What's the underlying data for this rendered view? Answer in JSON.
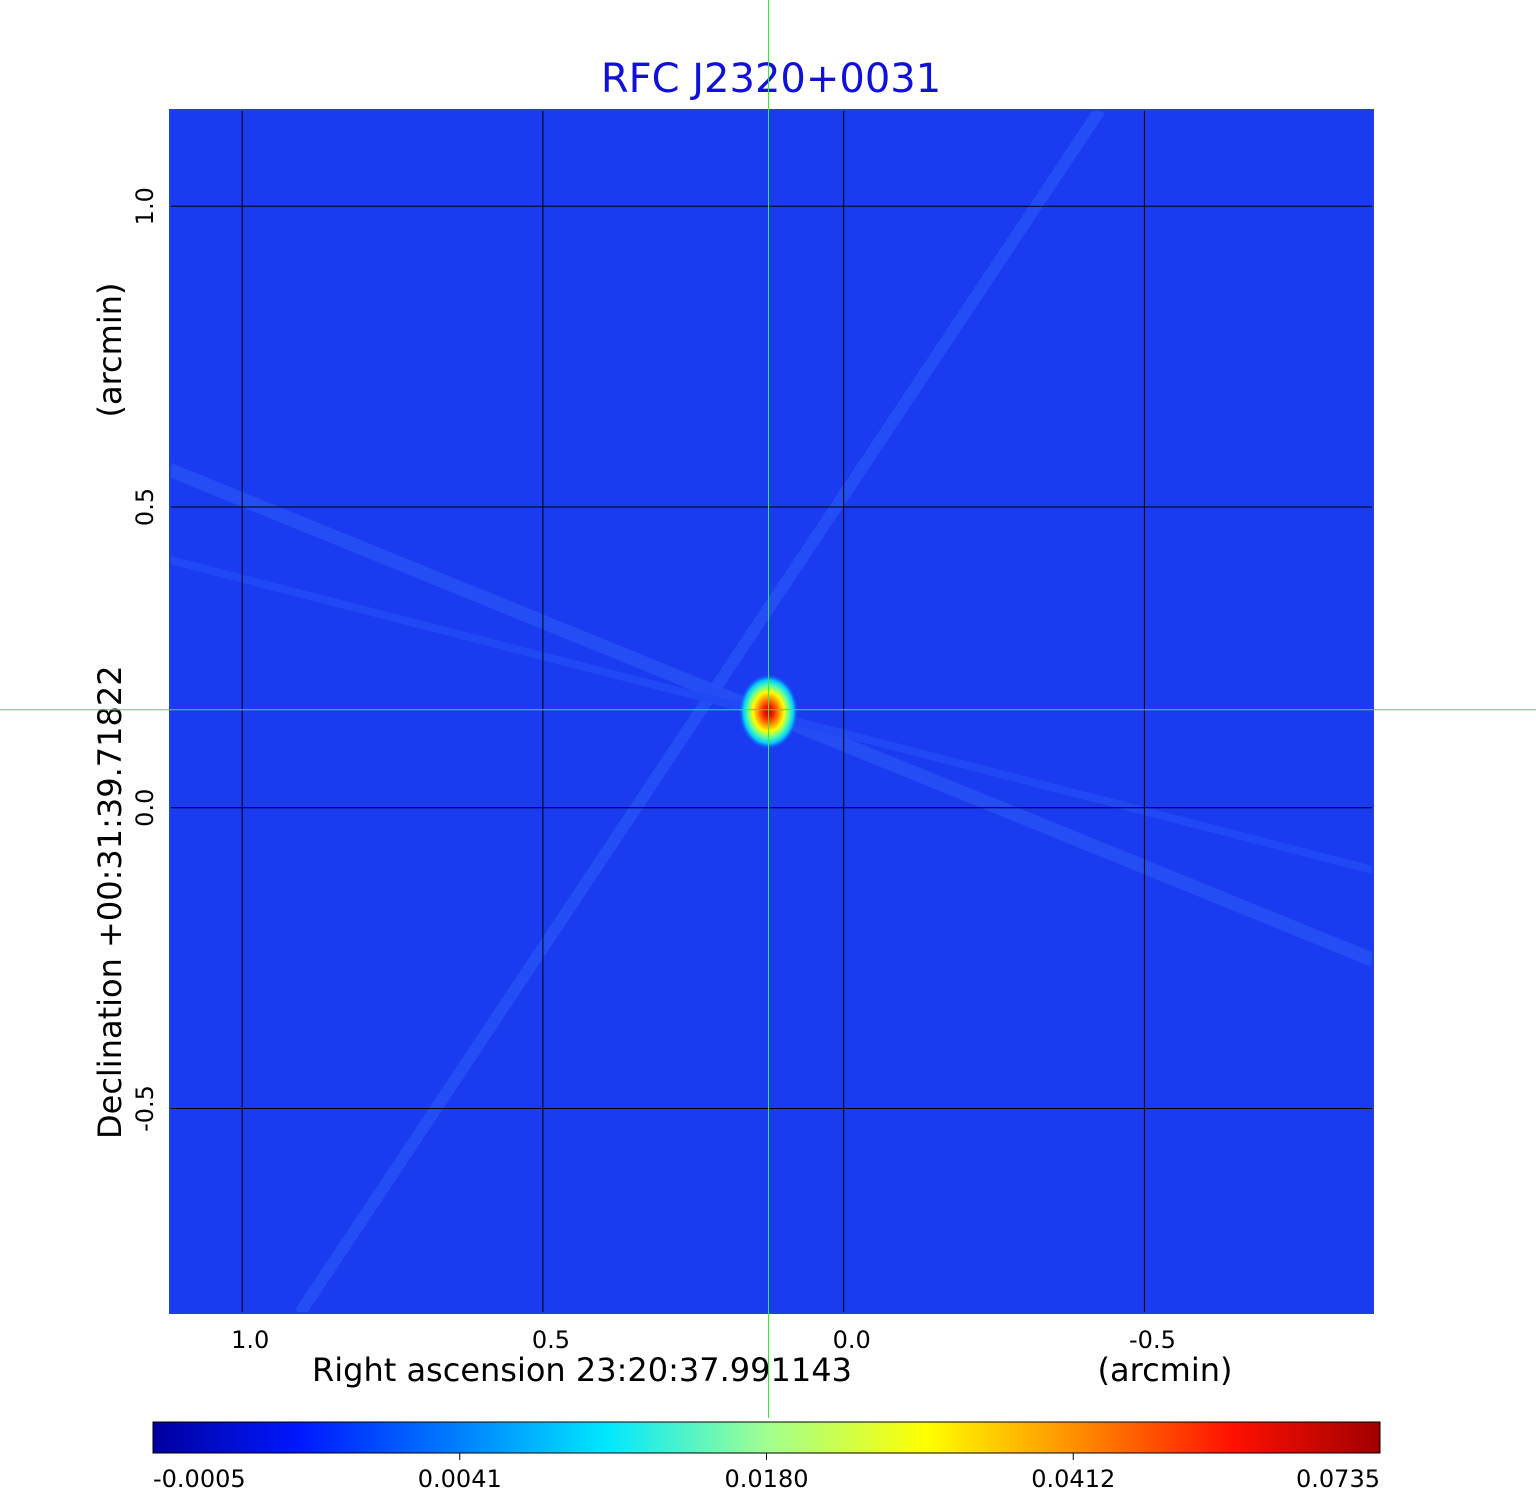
{
  "chart_data": {
    "type": "heatmap",
    "title": "RFC J2320+0031",
    "xlabel": "Right ascension  23:20:37.991143",
    "xunit": "(arcmin)",
    "ylabel": "Declination  +00:31:39.71822",
    "yunit": "(arcmin)",
    "x_reversed": true,
    "xlim": [
      1.12,
      -0.88
    ],
    "ylim": [
      -0.84,
      1.16
    ],
    "xticks": [
      1.0,
      0.5,
      0.0,
      -0.5
    ],
    "xtick_labels": [
      "1.0",
      "0.5",
      "0.0",
      "-0.5"
    ],
    "yticks": [
      1.0,
      0.5,
      0.0,
      -0.5
    ],
    "ytick_labels": [
      "1.0",
      "0.5",
      "0.0",
      "-0.5"
    ],
    "grid": true,
    "crosshair": {
      "x": 0.125,
      "y": 0.163
    },
    "source_peak": {
      "x": 0.125,
      "y": 0.163,
      "value": 0.0735
    },
    "colorbar": {
      "tick_labels": [
        "-0.0005",
        "0.0041",
        "0.0180",
        "0.0412",
        "0.0735"
      ],
      "colormap": "jet",
      "range": [
        -0.0005,
        0.0735
      ]
    },
    "colors": {
      "title": "#1010d8",
      "background_field": "#1a3bf0",
      "grid": "#000000",
      "crosshair": "#33ee33"
    }
  }
}
